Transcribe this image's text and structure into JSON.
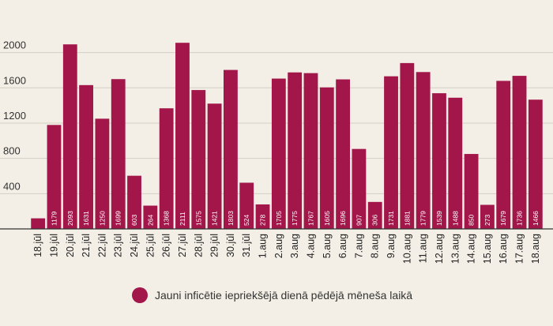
{
  "chart_data": {
    "type": "bar",
    "title": "",
    "xlabel": "",
    "ylabel": "",
    "ylim": [
      0,
      2300
    ],
    "yticks": [
      400,
      800,
      1200,
      1600,
      2000
    ],
    "grid": true,
    "legend_position": "bottom-center",
    "bar_color": "#a3164a",
    "categories": [
      "18.jūl",
      "19.jūl",
      "20.jūl",
      "21.jūl",
      "22.jūl",
      "23.jūl",
      "24.jūl",
      "25.jūl",
      "26.jūl",
      "27.jūl",
      "28.jūl",
      "29.jūl",
      "30.jūl",
      "31.jūl",
      "1.aug",
      "2.aug",
      "3.aug",
      "4.aug",
      "5.aug",
      "6.aug",
      "7.aug",
      "8.aug",
      "9.aug",
      "10.aug",
      "11.aug",
      "12.aug",
      "13.aug",
      "14.aug",
      "15.aug",
      "16.aug",
      "17.aug",
      "18.aug"
    ],
    "values": [
      120,
      1179,
      2093,
      1631,
      1250,
      1699,
      603,
      264,
      1368,
      2111,
      1575,
      1421,
      1803,
      524,
      278,
      1705,
      1775,
      1767,
      1605,
      1696,
      907,
      306,
      1731,
      1881,
      1779,
      1539,
      1488,
      850,
      273,
      1679,
      1736,
      1466
    ],
    "data_labels": [
      "",
      "1179",
      "2093",
      "1631",
      "1250",
      "1699",
      "603",
      "264",
      "1368",
      "2111",
      "1575",
      "1421",
      "1803",
      "524",
      "278",
      "1705",
      "1775",
      "1767",
      "1605",
      "1696",
      "907",
      "306",
      "1731",
      "1881",
      "1779",
      "1539",
      "1488",
      "850",
      "273",
      "1679",
      "1736",
      "1466"
    ],
    "series": [
      {
        "name": "Jauni inficētie iepriekšējā dienā pēdējā mēneša laikā"
      }
    ]
  }
}
